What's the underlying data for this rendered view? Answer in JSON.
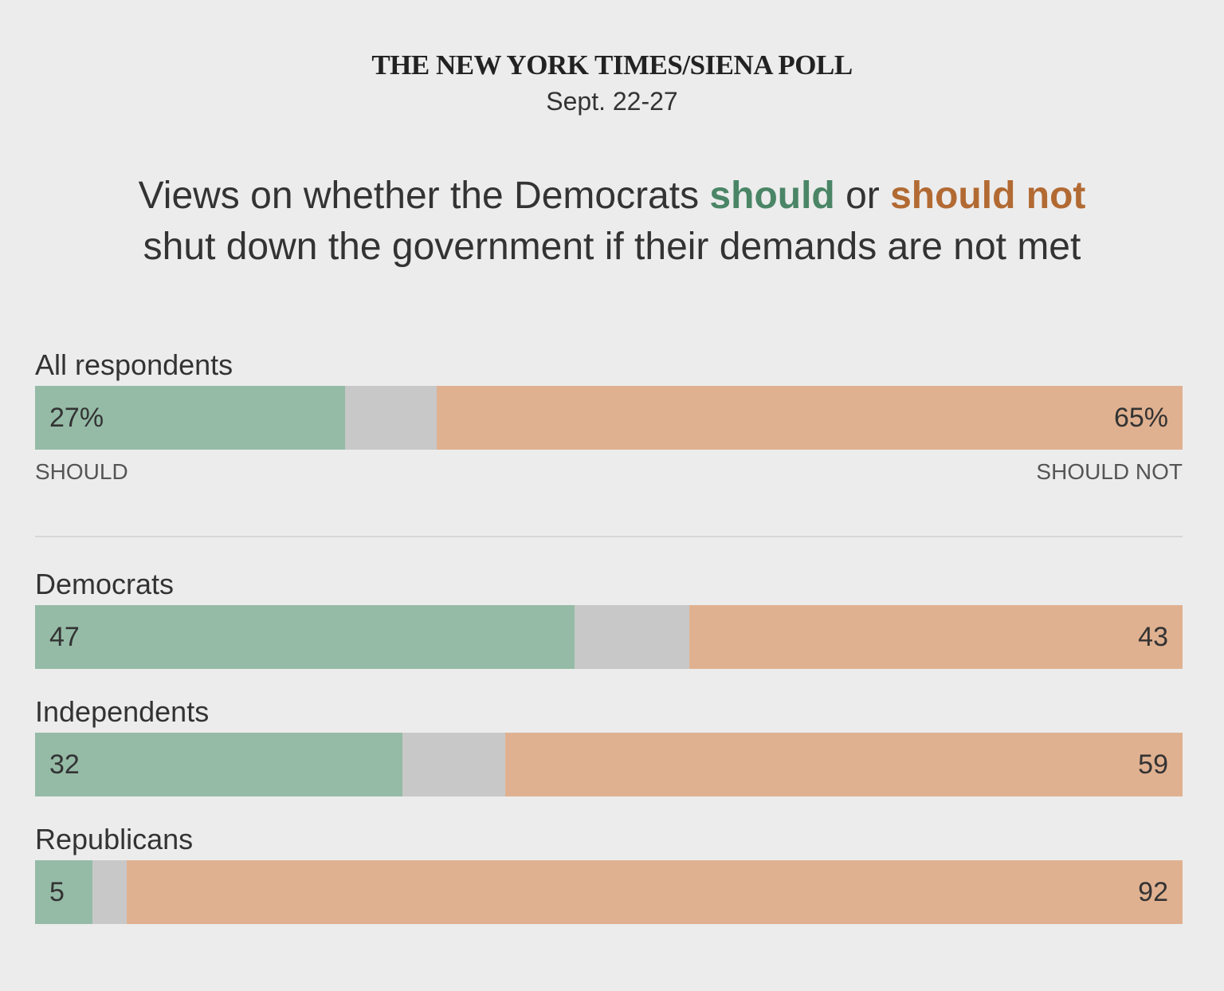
{
  "header": {
    "source": "THE NEW YORK TIMES/SIENA POLL",
    "dates": "Sept. 22-27",
    "title_part1": "Views on whether the Democrats ",
    "title_should": "should",
    "title_or": " or ",
    "title_should_not": "should not",
    "title_part2": "shut down the government if their demands are not met"
  },
  "axis_labels": {
    "should": "SHOULD",
    "should_not": "SHOULD NOT"
  },
  "colors": {
    "should_bar": "#95bba7",
    "should_not_bar": "#e0b190",
    "unsure_bar": "#c8c8c8",
    "should_text": "#4a8566",
    "should_not_text": "#b26a33",
    "background": "#ececec"
  },
  "chart_data": {
    "type": "bar",
    "orientation": "horizontal-stacked",
    "categories": [
      "All respondents",
      "Democrats",
      "Independents",
      "Republicans"
    ],
    "series": [
      {
        "name": "should",
        "values": [
          27,
          47,
          32,
          5
        ]
      },
      {
        "name": "should not",
        "values": [
          65,
          43,
          59,
          92
        ]
      }
    ],
    "value_labels": {
      "should": [
        "27%",
        "47",
        "32",
        "5"
      ],
      "should_not": [
        "65%",
        "43",
        "59",
        "92"
      ]
    },
    "xlim": [
      0,
      100
    ],
    "grid": false
  }
}
